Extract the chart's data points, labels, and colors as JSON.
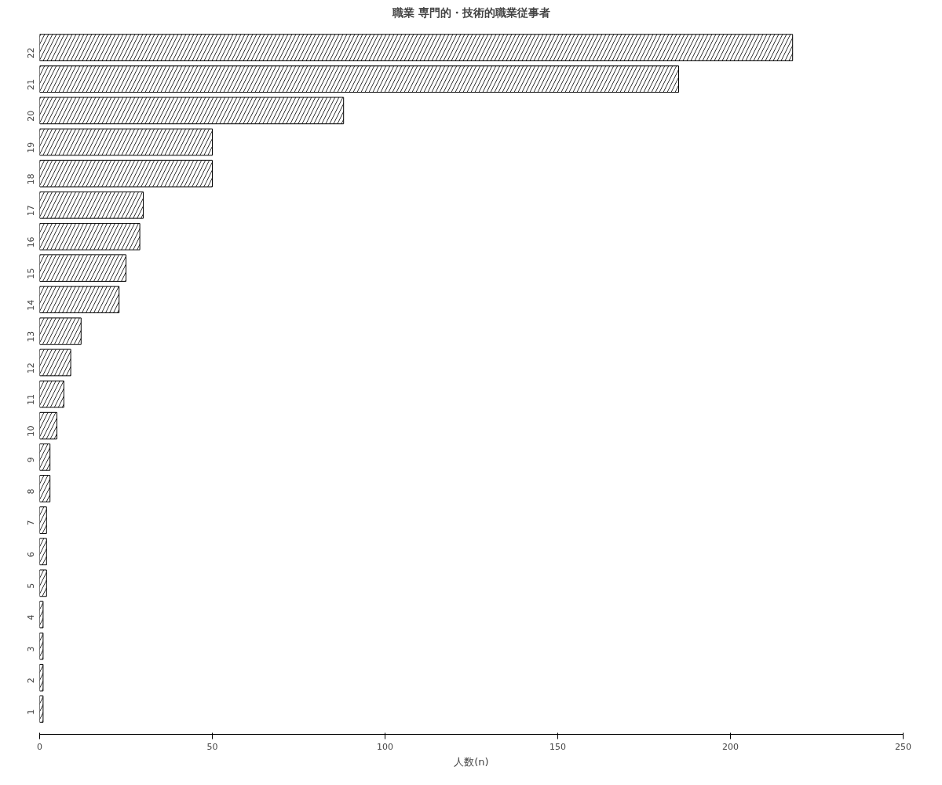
{
  "chart_data": {
    "type": "bar",
    "orientation": "horizontal",
    "title": "職業 専門的・技術的職業従事者",
    "xlabel": "人数(n)",
    "categories": [
      "22",
      "21",
      "20",
      "19",
      "18",
      "17",
      "16",
      "15",
      "14",
      "13",
      "12",
      "11",
      "10",
      "9",
      "8",
      "7",
      "6",
      "5",
      "4",
      "3",
      "2",
      "1"
    ],
    "values": [
      218,
      185,
      88,
      50,
      50,
      30,
      29,
      25,
      23,
      12,
      9,
      7,
      5,
      3,
      3,
      2,
      2,
      2,
      1,
      1,
      1,
      1
    ],
    "color": "#ffffff",
    "xlim": [
      0,
      250
    ],
    "xticks": [
      0,
      50,
      100,
      150,
      200,
      250
    ],
    "grid": false
  }
}
